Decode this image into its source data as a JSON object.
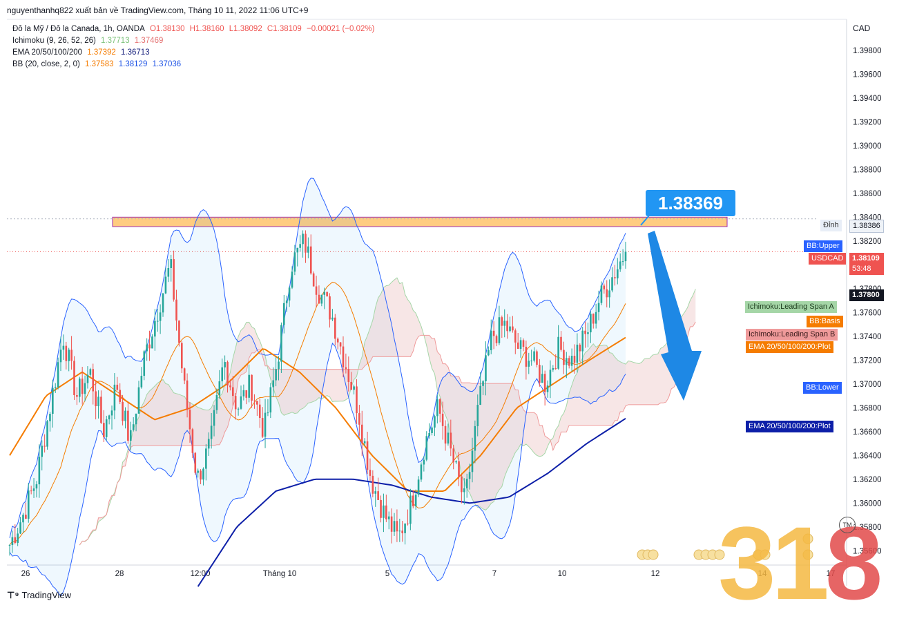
{
  "header": "nguyenthanhq822 xuất bản về TradingView.com, Tháng 10 11, 2022 11:06 UTC+9",
  "legend": {
    "symbol": "Đô la Mỹ / Đô la Canada, 1h, OANDA",
    "o": "O1.38130",
    "h": "H1.38160",
    "l": "L1.38092",
    "c": "C1.38109",
    "change": "−0.00021 (−0.02%)",
    "ichimoku_name": "Ichimoku (9, 26, 52, 26)",
    "ichimoku_a": "1.37713",
    "ichimoku_b": "1.37469",
    "ema_name": "EMA 20/50/100/200",
    "ema_1": "1.37392",
    "ema_2": "1.36713",
    "bb_name": "BB (20, close, 2, 0)",
    "bb_basis": "1.37583",
    "bb_upper": "1.38129",
    "bb_lower": "1.37036"
  },
  "axis_currency": "CAD",
  "tags": {
    "dinh_label": "Đỉnh",
    "dinh_value": "1.38386",
    "bb_upper": "BB:Upper",
    "usdcad": "USDCAD",
    "last_price": "1.38109",
    "countdown": "53:48",
    "crosshair_value": "1.37800",
    "span_a": "Ichimoku:Leading Span A",
    "bb_basis": "BB:Basis",
    "span_b": "Ichimoku:Leading Span B",
    "ema_plot_orange": "EMA 20/50/100/200:Plot",
    "bb_lower": "BB:Lower",
    "ema_plot_navy": "EMA 20/50/100/200:Plot"
  },
  "annotation_price": "1.38369",
  "footer": "TradingView",
  "watermark_digits": "31",
  "watermark_eight": "8",
  "watermark_tm": "TM",
  "colors": {
    "up": "#26a69a",
    "down": "#ef5350",
    "bb": "#2962ff",
    "ema_orange": "#f57c00",
    "ema_navy": "#0d1fa8",
    "arrow": "#1e88e5"
  },
  "chart_data": {
    "type": "candlestick",
    "ylim": [
      1.3548,
      1.4006
    ],
    "y_ticks": [
      1.356,
      1.358,
      1.36,
      1.362,
      1.364,
      1.366,
      1.368,
      1.37,
      1.372,
      1.374,
      1.376,
      1.378,
      1.38,
      1.382,
      1.384,
      1.386,
      1.388,
      1.39,
      1.392,
      1.394,
      1.396,
      1.398
    ],
    "x_ticks": [
      "26",
      "28",
      "12:00",
      "Tháng 10",
      "5",
      "7",
      "10",
      "12",
      "14",
      "17"
    ],
    "resistance_zone": [
      1.3832,
      1.384
    ],
    "last_price": 1.38109,
    "close_path": [
      1.3565,
      1.359,
      1.362,
      1.368,
      1.374,
      1.369,
      1.371,
      1.366,
      1.37,
      1.365,
      1.372,
      1.376,
      1.38,
      1.37,
      1.362,
      1.365,
      1.372,
      1.368,
      1.37,
      1.366,
      1.372,
      1.38,
      1.382,
      1.378,
      1.376,
      1.372,
      1.368,
      1.362,
      1.359,
      1.357,
      1.36,
      1.365,
      1.368,
      1.364,
      1.36,
      1.368,
      1.374,
      1.375,
      1.373,
      1.372,
      1.37,
      1.373,
      1.372,
      1.374,
      1.377,
      1.379,
      1.3811
    ],
    "ema_slow_path": [
      1.353,
      1.358,
      1.361,
      1.362,
      1.362,
      1.3615,
      1.3605,
      1.36,
      1.3605,
      1.3625,
      1.365,
      1.3671
    ],
    "ema_fast_path": [
      1.364,
      1.369,
      1.371,
      1.369,
      1.367,
      1.368,
      1.37,
      1.373,
      1.371,
      1.368,
      1.364,
      1.361,
      1.361,
      1.364,
      1.368,
      1.37,
      1.372,
      1.3739
    ]
  }
}
